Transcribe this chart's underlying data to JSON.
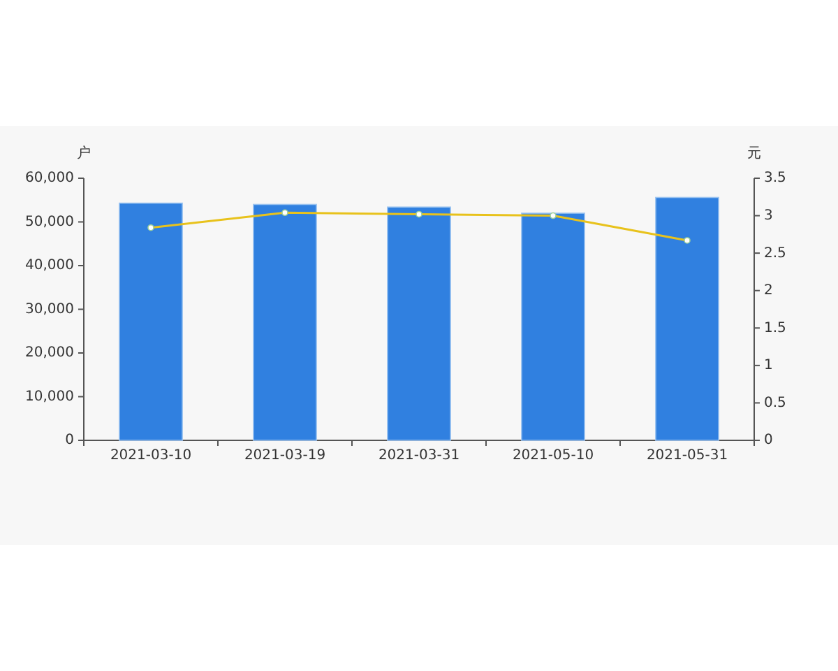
{
  "chart_data": {
    "type": "bar",
    "categories": [
      "2021-03-10",
      "2021-03-19",
      "2021-03-31",
      "2021-05-10",
      "2021-05-31"
    ],
    "series": [
      {
        "color": "#3080e0",
        "values": [
          54300,
          54000,
          53400,
          52000,
          55600
        ]
      },
      {
        "type": "line",
        "axis": "y2",
        "color": "#e8c21c",
        "values": [
          2.84,
          3.04,
          3.02,
          3.0,
          2.67
        ]
      }
    ],
    "ylabel": "户",
    "y2label": "元",
    "ylim": [
      0,
      60000
    ],
    "yticks": [
      0,
      {
        "value": 10000,
        "label": "10,000"
      },
      {
        "value": 20000,
        "label": "20,000"
      },
      {
        "value": 30000,
        "label": "30,000"
      },
      {
        "value": 40000,
        "label": "40,000"
      },
      {
        "value": 50000,
        "label": "50,000"
      },
      {
        "value": 60000,
        "label": "60,000"
      }
    ],
    "y2lim": [
      0,
      3.5
    ],
    "y2ticks": [
      0,
      0.5,
      1,
      1.5,
      2,
      2.5,
      3,
      3.5
    ],
    "marker": "circle",
    "line_style": "solid",
    "grid": false
  }
}
